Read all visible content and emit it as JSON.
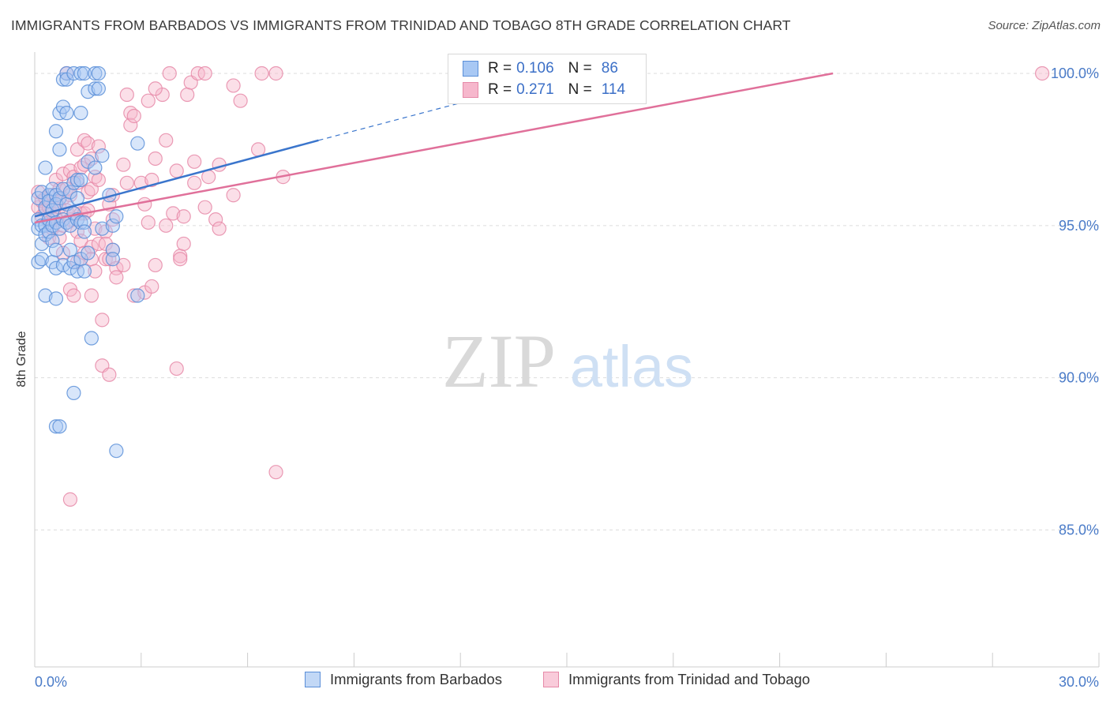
{
  "title": "IMMIGRANTS FROM BARBADOS VS IMMIGRANTS FROM TRINIDAD AND TOBAGO 8TH GRADE CORRELATION CHART",
  "source": "Source: ZipAtlas.com",
  "watermark": {
    "zip": "ZIP",
    "atlas": "atlas"
  },
  "colors": {
    "barbados_fill": "#a8c8f4",
    "barbados_stroke": "#5b8fd8",
    "barbados_line": "#3a75cc",
    "trinidad_fill": "#f6b7cc",
    "trinidad_stroke": "#e68aa8",
    "trinidad_line": "#e0709a",
    "axis_value": "#4a7bc8",
    "grid": "#dddddd"
  },
  "legend_top": [
    {
      "r_label": "R =",
      "r_value": "0.106",
      "n_label": "N =",
      "n_value": "86"
    },
    {
      "r_label": "R =",
      "r_value": "0.271",
      "n_label": "N =",
      "n_value": "114"
    }
  ],
  "legend_bottom": [
    {
      "label": "Immigrants from Barbados"
    },
    {
      "label": "Immigrants from Trinidad and Tobago"
    }
  ],
  "chart_data": {
    "type": "scatter",
    "title": "IMMIGRANTS FROM BARBADOS VS IMMIGRANTS FROM TRINIDAD AND TOBAGO 8TH GRADE CORRELATION CHART",
    "xlabel": "",
    "ylabel": "8th Grade",
    "xlim": [
      0,
      30
    ],
    "ylim": [
      80.5,
      100.7
    ],
    "x_tick_labels": [
      {
        "value": 0,
        "label": "0.0%"
      },
      {
        "value": 30,
        "label": "30.0%"
      }
    ],
    "y_tick_labels": [
      {
        "value": 100,
        "label": "100.0%"
      },
      {
        "value": 95,
        "label": "95.0%"
      },
      {
        "value": 90,
        "label": "90.0%"
      },
      {
        "value": 85,
        "label": "85.0%"
      }
    ],
    "series": [
      {
        "name": "Immigrants from Barbados",
        "R": 0.106,
        "N": 86,
        "trend": {
          "x0": 0,
          "y0": 95.3,
          "x1": 8.0,
          "y1": 97.8,
          "dash_to_x": 13.2,
          "dash_to_y": 99.4
        },
        "points": [
          [
            0.1,
            95.2
          ],
          [
            0.1,
            95.9
          ],
          [
            0.1,
            94.9
          ],
          [
            0.1,
            93.8
          ],
          [
            0.2,
            96.1
          ],
          [
            0.2,
            95.0
          ],
          [
            0.2,
            94.4
          ],
          [
            0.2,
            93.9
          ],
          [
            0.3,
            96.9
          ],
          [
            0.3,
            95.6
          ],
          [
            0.3,
            95.0
          ],
          [
            0.3,
            94.7
          ],
          [
            0.3,
            92.7
          ],
          [
            0.4,
            96.0
          ],
          [
            0.4,
            95.8
          ],
          [
            0.4,
            95.2
          ],
          [
            0.4,
            94.8
          ],
          [
            0.5,
            96.2
          ],
          [
            0.5,
            95.5
          ],
          [
            0.5,
            95.0
          ],
          [
            0.5,
            94.5
          ],
          [
            0.5,
            93.8
          ],
          [
            0.6,
            98.1
          ],
          [
            0.6,
            96.0
          ],
          [
            0.6,
            95.7
          ],
          [
            0.6,
            95.1
          ],
          [
            0.6,
            94.2
          ],
          [
            0.6,
            93.6
          ],
          [
            0.6,
            92.6
          ],
          [
            0.6,
            88.4
          ],
          [
            0.7,
            98.7
          ],
          [
            0.7,
            97.5
          ],
          [
            0.7,
            95.9
          ],
          [
            0.7,
            94.9
          ],
          [
            0.7,
            88.4
          ],
          [
            0.8,
            99.8
          ],
          [
            0.8,
            98.9
          ],
          [
            0.8,
            96.2
          ],
          [
            0.8,
            95.2
          ],
          [
            0.8,
            93.7
          ],
          [
            0.9,
            100.0
          ],
          [
            0.9,
            99.8
          ],
          [
            0.9,
            98.7
          ],
          [
            0.9,
            95.7
          ],
          [
            0.9,
            95.1
          ],
          [
            1.0,
            96.1
          ],
          [
            1.0,
            95.0
          ],
          [
            1.0,
            94.2
          ],
          [
            1.0,
            93.6
          ],
          [
            1.1,
            100.0
          ],
          [
            1.1,
            96.4
          ],
          [
            1.1,
            95.4
          ],
          [
            1.1,
            93.8
          ],
          [
            1.1,
            89.5
          ],
          [
            1.2,
            96.5
          ],
          [
            1.2,
            95.9
          ],
          [
            1.2,
            95.2
          ],
          [
            1.2,
            93.5
          ],
          [
            1.3,
            100.0
          ],
          [
            1.3,
            98.7
          ],
          [
            1.3,
            96.5
          ],
          [
            1.3,
            95.1
          ],
          [
            1.3,
            93.9
          ],
          [
            1.4,
            100.0
          ],
          [
            1.4,
            95.1
          ],
          [
            1.4,
            94.8
          ],
          [
            1.4,
            93.5
          ],
          [
            1.5,
            99.4
          ],
          [
            1.5,
            97.1
          ],
          [
            1.5,
            94.1
          ],
          [
            1.6,
            91.3
          ],
          [
            1.7,
            100.0
          ],
          [
            1.7,
            99.5
          ],
          [
            1.7,
            96.9
          ],
          [
            1.8,
            100.0
          ],
          [
            1.8,
            99.5
          ],
          [
            1.9,
            97.3
          ],
          [
            1.9,
            94.9
          ],
          [
            2.1,
            96.0
          ],
          [
            2.2,
            95.0
          ],
          [
            2.2,
            94.2
          ],
          [
            2.2,
            93.9
          ],
          [
            2.3,
            95.3
          ],
          [
            2.3,
            87.6
          ],
          [
            2.9,
            97.7
          ],
          [
            2.9,
            92.7
          ]
        ]
      },
      {
        "name": "Immigrants from Trinidad and Tobago",
        "R": 0.271,
        "N": 114,
        "trend": {
          "x0": 0,
          "y0": 95.1,
          "x1": 22.5,
          "y1": 100.0
        },
        "points": [
          [
            0.1,
            96.1
          ],
          [
            0.1,
            95.6
          ],
          [
            0.2,
            95.8
          ],
          [
            0.2,
            95.3
          ],
          [
            0.3,
            95.9
          ],
          [
            0.3,
            95.5
          ],
          [
            0.4,
            95.6
          ],
          [
            0.4,
            95.1
          ],
          [
            0.4,
            94.6
          ],
          [
            0.5,
            96.0
          ],
          [
            0.5,
            95.4
          ],
          [
            0.5,
            94.9
          ],
          [
            0.6,
            96.5
          ],
          [
            0.6,
            95.8
          ],
          [
            0.6,
            95.2
          ],
          [
            0.7,
            96.2
          ],
          [
            0.7,
            95.6
          ],
          [
            0.7,
            94.6
          ],
          [
            0.8,
            96.7
          ],
          [
            0.8,
            95.9
          ],
          [
            0.8,
            95.0
          ],
          [
            0.8,
            94.1
          ],
          [
            0.9,
            96.2
          ],
          [
            0.9,
            95.5
          ],
          [
            1.0,
            96.8
          ],
          [
            1.0,
            96.0
          ],
          [
            1.0,
            95.2
          ],
          [
            1.0,
            92.9
          ],
          [
            1.1,
            96.6
          ],
          [
            1.1,
            95.4
          ],
          [
            1.1,
            92.7
          ],
          [
            1.2,
            97.5
          ],
          [
            1.2,
            96.4
          ],
          [
            1.2,
            94.8
          ],
          [
            1.2,
            93.8
          ],
          [
            1.3,
            96.9
          ],
          [
            1.3,
            95.4
          ],
          [
            1.3,
            94.5
          ],
          [
            1.4,
            97.8
          ],
          [
            1.4,
            97.0
          ],
          [
            1.4,
            95.4
          ],
          [
            1.4,
            94.1
          ],
          [
            1.5,
            97.7
          ],
          [
            1.5,
            96.1
          ],
          [
            1.5,
            95.5
          ],
          [
            1.6,
            97.2
          ],
          [
            1.6,
            96.2
          ],
          [
            1.6,
            94.3
          ],
          [
            1.6,
            93.9
          ],
          [
            1.6,
            92.7
          ],
          [
            1.7,
            96.6
          ],
          [
            1.7,
            94.9
          ],
          [
            1.7,
            93.5
          ],
          [
            1.8,
            97.6
          ],
          [
            1.8,
            96.5
          ],
          [
            1.8,
            94.4
          ],
          [
            1.9,
            91.9
          ],
          [
            1.9,
            90.4
          ],
          [
            2.0,
            94.8
          ],
          [
            2.0,
            94.4
          ],
          [
            2.0,
            93.9
          ],
          [
            2.1,
            95.7
          ],
          [
            2.1,
            93.9
          ],
          [
            2.1,
            90.1
          ],
          [
            2.2,
            96.0
          ],
          [
            2.2,
            95.2
          ],
          [
            2.2,
            94.2
          ],
          [
            2.3,
            93.6
          ],
          [
            2.3,
            93.3
          ],
          [
            2.5,
            97.0
          ],
          [
            2.5,
            93.7
          ],
          [
            2.6,
            99.3
          ],
          [
            2.6,
            96.4
          ],
          [
            2.7,
            98.7
          ],
          [
            2.7,
            98.3
          ],
          [
            2.8,
            98.6
          ],
          [
            2.8,
            92.7
          ],
          [
            3.0,
            96.4
          ],
          [
            3.1,
            95.7
          ],
          [
            3.1,
            92.8
          ],
          [
            3.2,
            99.1
          ],
          [
            3.2,
            95.1
          ],
          [
            3.3,
            96.5
          ],
          [
            3.3,
            93.0
          ],
          [
            3.4,
            97.2
          ],
          [
            3.4,
            93.7
          ],
          [
            3.6,
            99.3
          ],
          [
            3.7,
            95.0
          ],
          [
            3.7,
            97.8
          ],
          [
            3.8,
            100.0
          ],
          [
            3.9,
            95.4
          ],
          [
            4.0,
            96.8
          ],
          [
            4.1,
            94.0
          ],
          [
            4.1,
            93.9
          ],
          [
            4.2,
            94.4
          ],
          [
            4.2,
            95.3
          ],
          [
            4.3,
            99.3
          ],
          [
            4.4,
            99.7
          ],
          [
            4.5,
            96.4
          ],
          [
            4.5,
            97.1
          ],
          [
            4.6,
            100.0
          ],
          [
            4.8,
            95.6
          ],
          [
            4.9,
            96.6
          ],
          [
            5.1,
            95.2
          ],
          [
            5.2,
            97.0
          ],
          [
            5.2,
            94.9
          ],
          [
            5.6,
            99.6
          ],
          [
            5.6,
            96.0
          ],
          [
            6.3,
            97.5
          ],
          [
            6.4,
            100.0
          ],
          [
            6.8,
            100.0
          ],
          [
            6.8,
            86.9
          ],
          [
            7.0,
            96.6
          ],
          [
            28.4,
            100.0
          ]
        ]
      }
    ],
    "extra_points_series2": [
      [
        0.9,
        100.0
      ],
      [
        1.0,
        86.0
      ],
      [
        4.0,
        90.3
      ],
      [
        3.4,
        99.5
      ],
      [
        4.8,
        100.0
      ],
      [
        5.8,
        99.1
      ]
    ]
  }
}
